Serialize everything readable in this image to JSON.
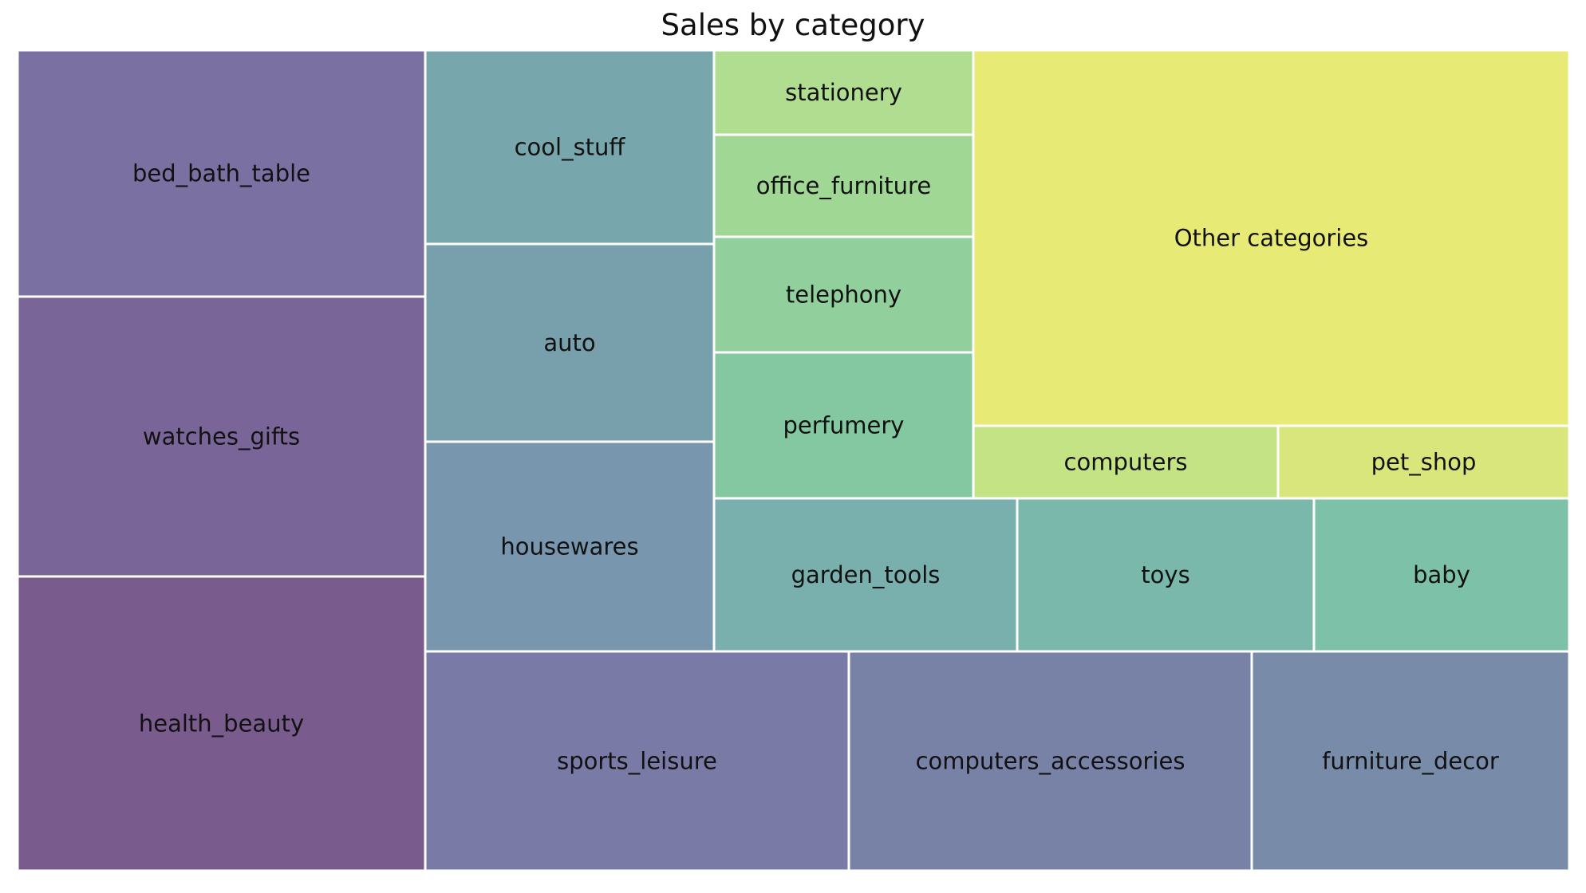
{
  "chart_data": {
    "type": "treemap",
    "title": "Sales by category",
    "tiles": [
      {
        "label": "bed_bath_table",
        "color": "#7a70a2"
      },
      {
        "label": "watches_gifts",
        "color": "#7a6599"
      },
      {
        "label": "health_beauty",
        "color": "#7a5b8e"
      },
      {
        "label": "cool_stuff",
        "color": "#77a6ad"
      },
      {
        "label": "auto",
        "color": "#779fac"
      },
      {
        "label": "housewares",
        "color": "#7896ae"
      },
      {
        "label": "sports_leisure",
        "color": "#7a7aa6"
      },
      {
        "label": "computers_accessories",
        "color": "#7882a6"
      },
      {
        "label": "furniture_decor",
        "color": "#788ba9"
      },
      {
        "label": "stationery",
        "color": "#b0dd90"
      },
      {
        "label": "office_furniture",
        "color": "#a0d794"
      },
      {
        "label": "telephony",
        "color": "#91d09c"
      },
      {
        "label": "perfumery",
        "color": "#84c8a2"
      },
      {
        "label": "Other categories",
        "color": "#e8ea76"
      },
      {
        "label": "computers",
        "color": "#c4e384"
      },
      {
        "label": "pet_shop",
        "color": "#d9e67c"
      },
      {
        "label": "garden_tools",
        "color": "#79b0ae"
      },
      {
        "label": "toys",
        "color": "#7ab8ab"
      },
      {
        "label": "baby",
        "color": "#7dc1a8"
      }
    ]
  }
}
